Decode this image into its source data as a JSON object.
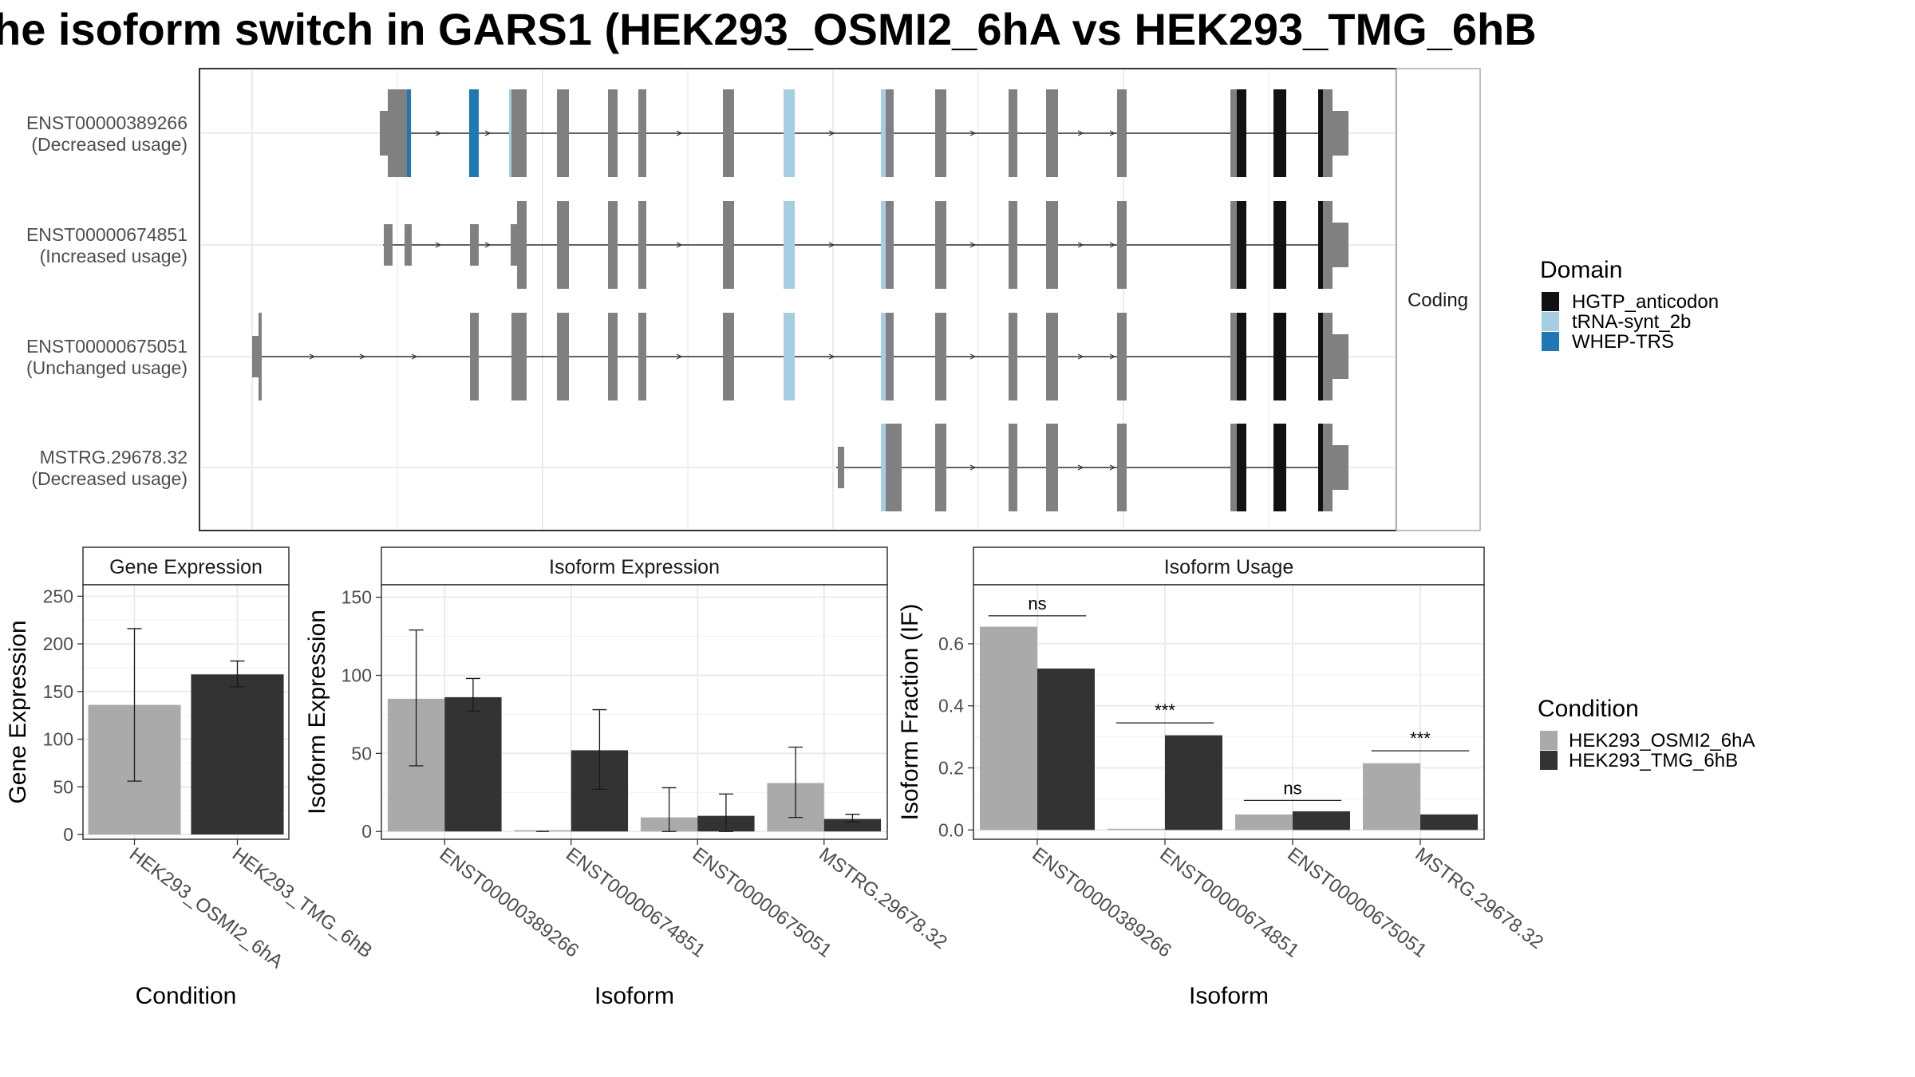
{
  "title": "he isoform switch in GARS1 (HEK293_OSMI2_6hA vs HEK293_TMG_6hB",
  "colors": {
    "exon": "#808080",
    "HGTP_anticodon": "#111111",
    "tRNA-synt_2b": "#a6cee3",
    "WHEP-TRS": "#1f78b4",
    "cond1": "#aaaaaa",
    "cond2": "#333333"
  },
  "structure": {
    "facet_label": "Coding",
    "transcripts": [
      {
        "id": "ENST00000389266",
        "usage": "(Decreased usage)",
        "start_type": "wide_utr",
        "first_exons": [
          {
            "s": 4.9,
            "e": 5.6,
            "t": "cds"
          },
          {
            "s": 5.6,
            "e": 5.7,
            "t": "WHEP-TRS"
          },
          {
            "s": 7.9,
            "e": 8.3,
            "t": "WHEP-TRS"
          }
        ]
      },
      {
        "id": "ENST00000674851",
        "usage": "(Increased usage)",
        "start_type": "small",
        "first_exons": [
          {
            "s": 4.9,
            "e": 5.1,
            "t": "utr"
          },
          {
            "s": 5.5,
            "e": 5.7,
            "t": "utr"
          },
          {
            "s": 7.9,
            "e": 8.2,
            "t": "utr"
          }
        ]
      },
      {
        "id": "ENST00000675051",
        "usage": "(Unchanged usage)",
        "start_type": "long_intron",
        "first_exons": [
          {
            "s": 0.0,
            "e": 0.25,
            "t": "utr"
          },
          {
            "s": 7.9,
            "e": 8.2,
            "t": "cds"
          }
        ]
      },
      {
        "id": "MSTRG.29678.32",
        "usage": "(Decreased usage)",
        "start_type": "late",
        "first_exons": []
      }
    ]
  },
  "legend_domain": {
    "title": "Domain",
    "items": [
      {
        "label": "HGTP_anticodon",
        "color": "#111111"
      },
      {
        "label": "tRNA-synt_2b",
        "color": "#a6cee3"
      },
      {
        "label": "WHEP-TRS",
        "color": "#1f78b4"
      }
    ]
  },
  "legend_condition": {
    "title": "Condition",
    "items": [
      {
        "label": "HEK293_OSMI2_6hA",
        "color": "#aaaaaa"
      },
      {
        "label": "HEK293_TMG_6hB",
        "color": "#333333"
      }
    ]
  },
  "chart_data": [
    {
      "type": "bar",
      "title": "Gene Expression",
      "xlabel": "Condition",
      "ylabel": "Gene Expression",
      "categories": [
        "HEK293_OSMI2_6hA",
        "HEK293_TMG_6hB"
      ],
      "values": [
        136,
        168
      ],
      "error_low": [
        56,
        155
      ],
      "error_high": [
        216,
        182
      ],
      "ylim": [
        -5,
        262
      ],
      "yticks": [
        0,
        50,
        100,
        150,
        200,
        250
      ]
    },
    {
      "type": "bar",
      "title": "Isoform Expression",
      "xlabel": "Isoform",
      "ylabel": "Isoform Expression",
      "categories": [
        "ENST00000389266",
        "ENST00000674851",
        "ENST00000675051",
        "MSTRG.29678.32"
      ],
      "series": [
        {
          "name": "HEK293_OSMI2_6hA",
          "values": [
            85,
            0,
            9,
            31
          ],
          "error_low": [
            42,
            0,
            0,
            9
          ],
          "error_high": [
            129,
            0,
            28,
            54
          ]
        },
        {
          "name": "HEK293_TMG_6hB",
          "values": [
            86,
            52,
            10,
            8
          ],
          "error_low": [
            77,
            27,
            0,
            6
          ],
          "error_high": [
            98,
            78,
            24,
            11
          ]
        }
      ],
      "ylim": [
        -5,
        158
      ],
      "yticks": [
        0,
        50,
        100,
        150
      ]
    },
    {
      "type": "bar",
      "title": "Isoform Usage",
      "xlabel": "Isoform",
      "ylabel": "Isoform Fraction (IF)",
      "categories": [
        "ENST00000389266",
        "ENST00000674851",
        "ENST00000675051",
        "MSTRG.29678.32"
      ],
      "series": [
        {
          "name": "HEK293_OSMI2_6hA",
          "values": [
            0.655,
            0.0,
            0.05,
            0.215
          ]
        },
        {
          "name": "HEK293_TMG_6hB",
          "values": [
            0.52,
            0.305,
            0.06,
            0.05
          ]
        }
      ],
      "significance": [
        "ns",
        "***",
        "ns",
        "***"
      ],
      "sig_y": [
        0.69,
        0.345,
        0.095,
        0.255
      ],
      "ylim": [
        -0.03,
        0.79
      ],
      "yticks": [
        0.0,
        0.2,
        0.4,
        0.6
      ],
      "ytick_labels": [
        "0.0",
        "0.2",
        "0.4",
        "0.6"
      ]
    }
  ]
}
